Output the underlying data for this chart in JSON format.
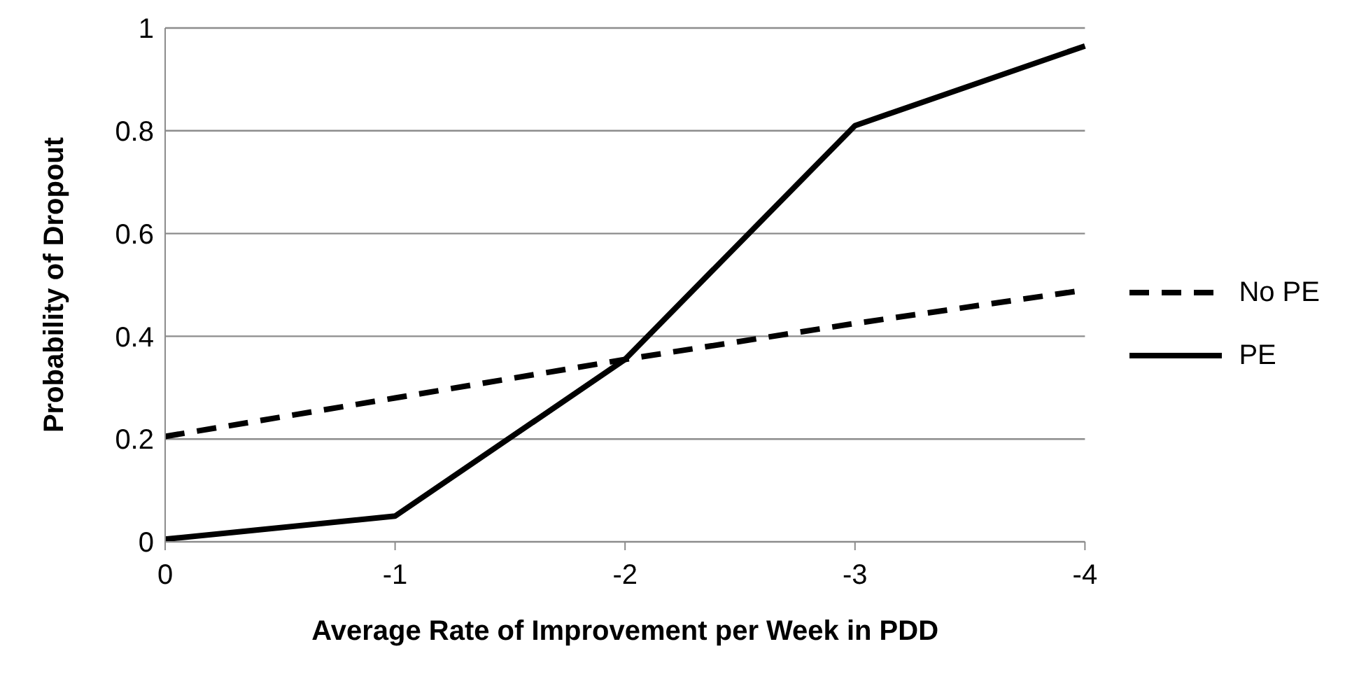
{
  "chart_data": {
    "type": "line",
    "xlabel": "Average Rate of Improvement per Week in PDD",
    "ylabel": "Probability of Dropout",
    "categories": [
      "0",
      "-1",
      "-2",
      "-3",
      "-4"
    ],
    "series": [
      {
        "name": "No PE",
        "color": "#000000",
        "line_style": "dashed",
        "values": [
          0.205,
          0.28,
          0.355,
          0.425,
          0.49
        ]
      },
      {
        "name": "PE",
        "color": "#000000",
        "line_style": "solid",
        "values": [
          0.005,
          0.05,
          0.355,
          0.81,
          0.965
        ]
      }
    ],
    "ylim": [
      0,
      1
    ],
    "yticks": [
      0,
      0.2,
      0.4,
      0.6,
      0.8,
      1
    ],
    "grid": "y",
    "legend": "right",
    "marker": "none"
  }
}
